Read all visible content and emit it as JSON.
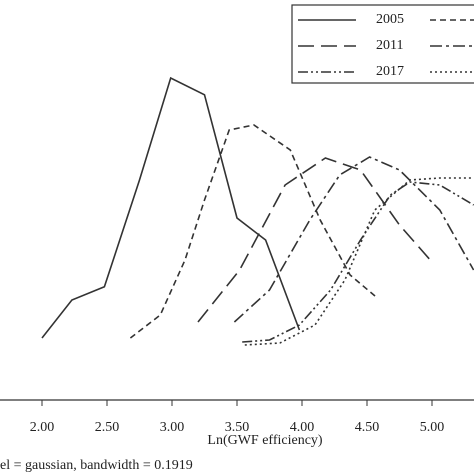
{
  "chart_data": {
    "type": "line",
    "x_label": "Ln(GWF efficiency)",
    "note": "el = gaussian, bandwidth = 0.1919",
    "xlim": [
      1.677,
      5.323
    ],
    "ylim": [
      0,
      1
    ],
    "xticks": [
      {
        "value": 2,
        "label": "2.00"
      },
      {
        "value": 2.5,
        "label": "2.50"
      },
      {
        "value": 3,
        "label": "3.00"
      },
      {
        "value": 3.5,
        "label": "3.50"
      },
      {
        "value": 4,
        "label": "4.00"
      },
      {
        "value": 4.5,
        "label": "4.50"
      },
      {
        "value": 5,
        "label": "5.00"
      }
    ],
    "series": [
      {
        "name": "2005",
        "color": "#333333",
        "dash": "none",
        "x": [
          2.0,
          2.23,
          2.48,
          2.75,
          2.99,
          3.25,
          3.5,
          3.72,
          3.98
        ],
        "values": [
          0.155,
          0.25,
          0.283,
          0.55,
          0.805,
          0.763,
          0.455,
          0.4,
          0.175
        ]
      },
      {
        "name": null,
        "color": "#333333",
        "dash": "6,4",
        "x": [
          2.68,
          2.91,
          3.1,
          3.25,
          3.44,
          3.63,
          3.91,
          4.14,
          4.37,
          4.58
        ],
        "values": [
          0.155,
          0.2125,
          0.35,
          0.5,
          0.675,
          0.6875,
          0.625,
          0.45,
          0.3125,
          0.255
        ]
      },
      {
        "name": "2011",
        "color": "#333333",
        "dash": "16,7",
        "x": [
          3.2,
          3.52,
          3.87,
          4.18,
          4.45,
          4.75,
          5.0
        ],
        "values": [
          0.195,
          0.325,
          0.5375,
          0.605,
          0.575,
          0.4375,
          0.345
        ]
      },
      {
        "name": null,
        "color": "#333333",
        "dash": "12,4,3,4",
        "x": [
          3.48,
          3.75,
          4.06,
          4.29,
          4.52,
          4.75,
          5.06,
          5.32
        ],
        "values": [
          0.195,
          0.275,
          0.45,
          0.5625,
          0.6075,
          0.575,
          0.475,
          0.325
        ]
      },
      {
        "name": "2017",
        "color": "#333333",
        "dash": "10,3,2,3,2,3",
        "x": [
          3.54,
          3.75,
          3.98,
          4.22,
          4.45,
          4.68,
          4.83,
          5.06,
          5.32
        ],
        "values": [
          0.145,
          0.15,
          0.1875,
          0.275,
          0.4,
          0.5125,
          0.545,
          0.5375,
          0.4875
        ]
      },
      {
        "name": null,
        "color": "#333333",
        "dash": "2,3",
        "x": [
          3.56,
          3.83,
          4.1,
          4.33,
          4.56,
          4.83,
          5.06,
          5.32
        ],
        "values": [
          0.1375,
          0.1425,
          0.1875,
          0.3,
          0.475,
          0.55,
          0.555,
          0.555
        ]
      }
    ]
  }
}
